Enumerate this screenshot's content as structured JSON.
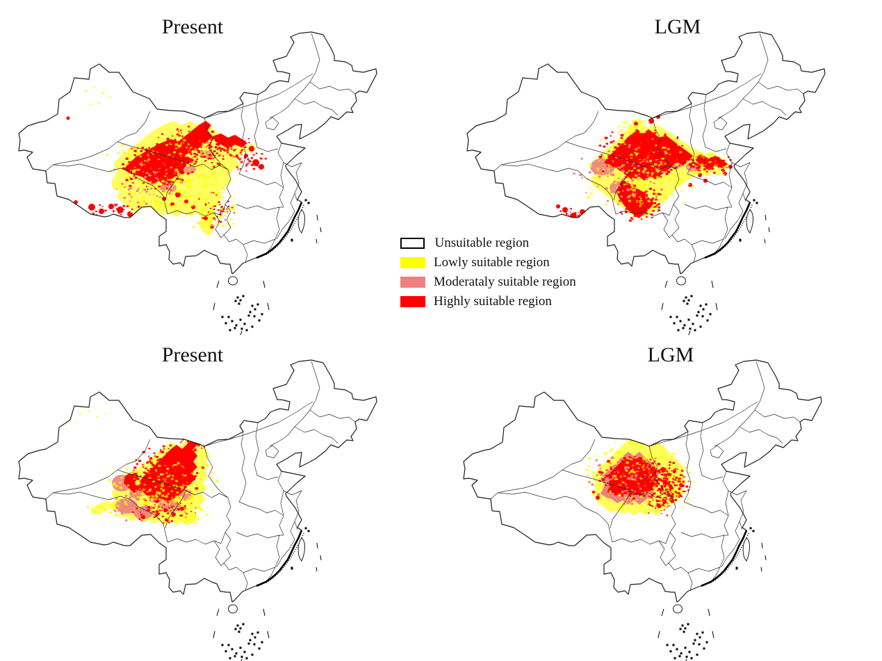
{
  "figure": {
    "panels": [
      {
        "position": "top-left",
        "title": "Present"
      },
      {
        "position": "top-right",
        "title": "LGM"
      },
      {
        "position": "bottom-left",
        "title": "Present"
      },
      {
        "position": "bottom-right",
        "title": "LGM"
      }
    ],
    "legend": {
      "items": [
        {
          "label": "Unsuitable region",
          "fill": "#FFFFFF",
          "border": "#000000"
        },
        {
          "label": "Lowly suitable region",
          "fill": "#FFFF00"
        },
        {
          "label": "Moderataly suitable region",
          "fill": "#F08080"
        },
        {
          "label": "Highly suitable region",
          "fill": "#FF0000"
        }
      ]
    }
  }
}
